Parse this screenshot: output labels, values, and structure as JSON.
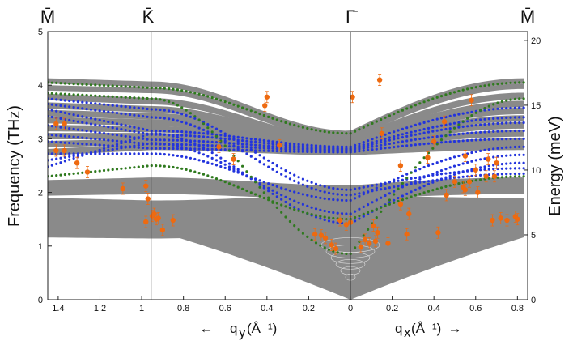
{
  "chart_data": {
    "type": "scatter",
    "title": "",
    "high_symmetry_points": [
      "M̄",
      "K̄",
      "Γ̄",
      "M̄"
    ],
    "ylabel_left": "Frequency (THz)",
    "ylabel_right": "Energy (meV)",
    "ylim_left": [
      0,
      5
    ],
    "ylim_right": [
      0,
      20.68
    ],
    "left_ticks": [
      "0",
      "1",
      "2",
      "3",
      "4",
      "5"
    ],
    "right_ticks": [
      "0",
      "5",
      "10",
      "15",
      "20"
    ],
    "x_left": {
      "label": "q_y (Å⁻¹)",
      "label_main": "q",
      "label_sub": "y",
      "label_unit": "(Å⁻¹)",
      "arrow": "←",
      "range": [
        1.45,
        0
      ],
      "ticks": [
        "1.4",
        "1.2",
        "1",
        "0.8",
        "0.6",
        "0.4",
        "0.2",
        "0"
      ]
    },
    "x_right": {
      "label": "q_x (Å⁻¹)",
      "label_main": "q",
      "label_sub": "x",
      "label_unit": "(Å⁻¹)",
      "arrow": "→",
      "range": [
        0,
        0.83
      ],
      "ticks": [
        "0",
        "0.2",
        "0.4",
        "0.6",
        "0.8"
      ]
    },
    "k_point_qy": 0.955,
    "bulk_band_color": "#8a8a8a",
    "blue_mode_color": "#2233dd",
    "green_mode_color": "#2f7a1e",
    "experiment_color": "#ee6a10",
    "experimental_points": [
      {
        "q": -1.41,
        "f": 3.28
      },
      {
        "q": -1.41,
        "f": 2.78
      },
      {
        "q": -1.37,
        "f": 2.78
      },
      {
        "q": -1.37,
        "f": 3.28
      },
      {
        "q": -1.31,
        "f": 2.55
      },
      {
        "q": -1.26,
        "f": 2.38
      },
      {
        "q": -1.09,
        "f": 2.07
      },
      {
        "q": -0.98,
        "f": 1.45
      },
      {
        "q": -0.98,
        "f": 2.12
      },
      {
        "q": -0.97,
        "f": 1.88
      },
      {
        "q": -0.95,
        "f": 1.56
      },
      {
        "q": -0.94,
        "f": 1.6
      },
      {
        "q": -0.93,
        "f": 1.5
      },
      {
        "q": -0.92,
        "f": 1.52
      },
      {
        "q": -0.9,
        "f": 1.3
      },
      {
        "q": -0.85,
        "f": 1.48
      },
      {
        "q": -0.63,
        "f": 2.85
      },
      {
        "q": -0.56,
        "f": 2.62
      },
      {
        "q": -0.41,
        "f": 3.62
      },
      {
        "q": -0.4,
        "f": 3.78
      },
      {
        "q": -0.34,
        "f": 2.88
      },
      {
        "q": -0.17,
        "f": 1.22
      },
      {
        "q": -0.14,
        "f": 1.2
      },
      {
        "q": -0.12,
        "f": 1.15
      },
      {
        "q": -0.09,
        "f": 1.02
      },
      {
        "q": -0.07,
        "f": 0.95
      },
      {
        "q": -0.05,
        "f": 1.48
      },
      {
        "q": -0.02,
        "f": 1.4
      },
      {
        "q": 0.0,
        "f": 1.44
      },
      {
        "q": 0.01,
        "f": 3.78
      },
      {
        "q": 0.05,
        "f": 0.98
      },
      {
        "q": 0.07,
        "f": 1.12
      },
      {
        "q": 0.09,
        "f": 1.05
      },
      {
        "q": 0.11,
        "f": 1.38
      },
      {
        "q": 0.12,
        "f": 1.09
      },
      {
        "q": 0.13,
        "f": 1.25
      },
      {
        "q": 0.14,
        "f": 4.1
      },
      {
        "q": 0.15,
        "f": 3.1
      },
      {
        "q": 0.18,
        "f": 1.05
      },
      {
        "q": 0.24,
        "f": 2.5
      },
      {
        "q": 0.24,
        "f": 1.78
      },
      {
        "q": 0.27,
        "f": 1.22
      },
      {
        "q": 0.28,
        "f": 1.6
      },
      {
        "q": 0.37,
        "f": 2.65
      },
      {
        "q": 0.4,
        "f": 2.95
      },
      {
        "q": 0.42,
        "f": 1.25
      },
      {
        "q": 0.45,
        "f": 3.32
      },
      {
        "q": 0.46,
        "f": 1.95
      },
      {
        "q": 0.5,
        "f": 2.2
      },
      {
        "q": 0.54,
        "f": 2.1
      },
      {
        "q": 0.55,
        "f": 2.05
      },
      {
        "q": 0.55,
        "f": 2.68
      },
      {
        "q": 0.57,
        "f": 2.2
      },
      {
        "q": 0.58,
        "f": 3.72
      },
      {
        "q": 0.6,
        "f": 2.42
      },
      {
        "q": 0.61,
        "f": 2.0
      },
      {
        "q": 0.65,
        "f": 2.3
      },
      {
        "q": 0.66,
        "f": 2.62
      },
      {
        "q": 0.68,
        "f": 1.48
      },
      {
        "q": 0.69,
        "f": 2.3
      },
      {
        "q": 0.7,
        "f": 2.55
      },
      {
        "q": 0.72,
        "f": 1.52
      },
      {
        "q": 0.75,
        "f": 1.48
      },
      {
        "q": 0.79,
        "f": 1.55
      },
      {
        "q": 0.8,
        "f": 1.5
      }
    ],
    "calculated_modes": [
      {
        "color": "blue",
        "fM": 3.55,
        "fK": 3.15,
        "fG": 2.85,
        "fM2": 3.58
      },
      {
        "color": "blue",
        "fM": 3.42,
        "fK": 3.08,
        "fG": 2.82,
        "fM2": 3.4
      },
      {
        "color": "blue",
        "fM": 3.25,
        "fK": 2.98,
        "fG": 2.8,
        "fM2": 3.3
      },
      {
        "color": "blue",
        "fM": 3.08,
        "fK": 2.9,
        "fG": 2.78,
        "fM2": 3.15
      },
      {
        "color": "blue",
        "fM": 2.95,
        "fK": 2.82,
        "fG": 2.75,
        "fM2": 3.0
      },
      {
        "color": "blue",
        "fM": 2.72,
        "fK": 2.72,
        "fG": 1.85,
        "fM2": 2.85
      },
      {
        "color": "blue",
        "fM": 2.6,
        "fK": 2.92,
        "fG": 1.6,
        "fM2": 2.7
      },
      {
        "color": "blue",
        "fM": 2.48,
        "fK": 3.1,
        "fG": 1.42,
        "fM2": 2.55
      },
      {
        "color": "blue",
        "fM": 3.75,
        "fK": 3.55,
        "fG": 2.05,
        "fM2": 2.45
      },
      {
        "color": "blue",
        "fM": 3.65,
        "fK": 3.4,
        "fG": 1.95,
        "fM2": 2.35
      },
      {
        "color": "green",
        "fM": 4.05,
        "fK": 3.95,
        "fG": 3.1,
        "fM2": 4.05
      },
      {
        "color": "green",
        "fM": 2.3,
        "fK": 2.5,
        "fG": 1.5,
        "fM2": 2.3
      },
      {
        "color": "green",
        "fM": 3.85,
        "fK": 3.75,
        "fG": 0.85,
        "fM2": 3.75
      }
    ]
  }
}
